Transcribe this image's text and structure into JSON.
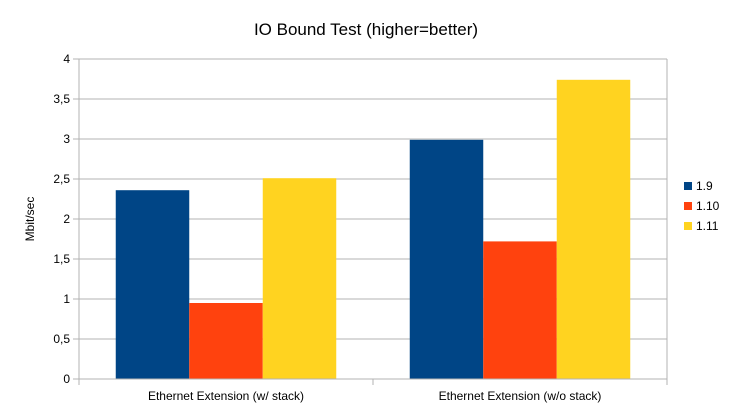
{
  "chart_data": {
    "type": "bar",
    "title": "IO Bound Test (higher=better)",
    "xlabel": "",
    "ylabel": "Mbit/sec",
    "categories": [
      "Ethernet Extension (w/ stack)",
      "Ethernet Extension (w/o stack)"
    ],
    "series": [
      {
        "name": "1.9",
        "values": [
          2.36,
          2.99
        ],
        "color": "#004586"
      },
      {
        "name": "1.10",
        "values": [
          0.95,
          1.72
        ],
        "color": "#ff420e"
      },
      {
        "name": "1.11",
        "values": [
          2.51,
          3.74
        ],
        "color": "#ffd320"
      }
    ],
    "ylim": [
      0,
      4
    ],
    "yticks": [
      "0",
      "0,5",
      "1",
      "1,5",
      "2",
      "2,5",
      "3",
      "3,5",
      "4"
    ],
    "grid": true,
    "legend": "right"
  }
}
